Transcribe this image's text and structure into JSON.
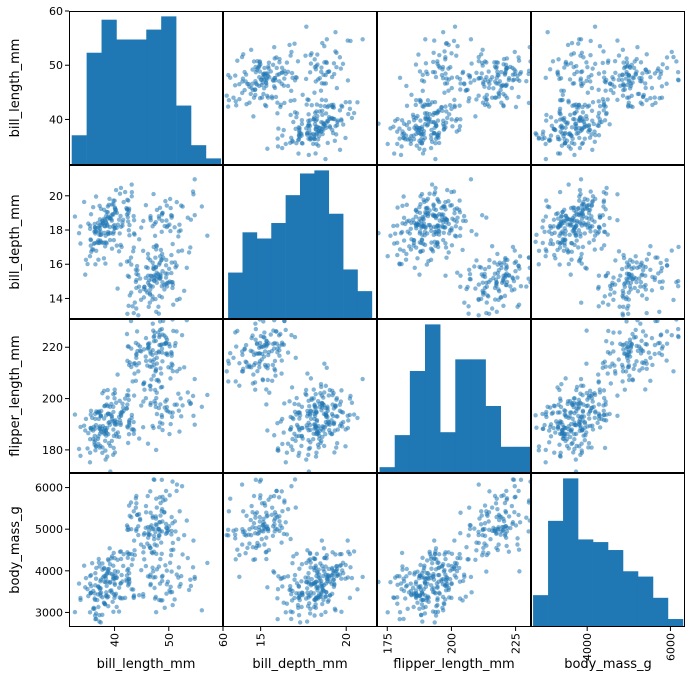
{
  "chart_data": {
    "type": "scatter_matrix",
    "variables": [
      "bill_length_mm",
      "bill_depth_mm",
      "flipper_length_mm",
      "body_mass_g"
    ],
    "ranges": {
      "bill_length_mm": [
        31.6,
        60.0
      ],
      "bill_depth_mm": [
        12.8,
        21.8
      ],
      "flipper_length_mm": [
        171.0,
        231.0
      ],
      "body_mass_g": [
        2650,
        6350
      ]
    },
    "row_ticks": {
      "bill_length_mm": [
        40,
        50,
        60
      ],
      "bill_depth_mm": [
        14,
        16,
        18,
        20
      ],
      "flipper_length_mm": [
        180,
        200,
        220
      ],
      "body_mass_g": [
        3000,
        4000,
        5000,
        6000
      ]
    },
    "col_ticks": {
      "bill_length_mm": [
        40,
        50,
        60
      ],
      "bill_depth_mm": [
        15,
        20
      ],
      "flipper_length_mm": [
        175,
        200,
        225
      ],
      "body_mass_g": [
        4000,
        6000
      ]
    },
    "histograms": {
      "bill_length_mm": {
        "range": [
          32.1,
          59.6
        ],
        "counts": [
          9,
          34,
          44,
          38,
          38,
          41,
          45,
          18,
          6,
          2
        ]
      },
      "bill_depth_mm": {
        "range": [
          13.1,
          21.5
        ],
        "counts": [
          15,
          28,
          26,
          31,
          40,
          47,
          48,
          34,
          16,
          9
        ]
      },
      "flipper_length_mm": {
        "range": [
          172,
          231
        ],
        "counts": [
          2,
          13,
          35,
          51,
          14,
          39,
          39,
          23,
          9,
          9
        ]
      },
      "body_mass_g": {
        "range": [
          2700,
          6300
        ],
        "counts": [
          12,
          40,
          56,
          33,
          32,
          29,
          21,
          19,
          11,
          3
        ]
      }
    },
    "marker_color": "#1f77b4",
    "bar_color": "#1f77b4",
    "grid": false,
    "legend": "none"
  }
}
